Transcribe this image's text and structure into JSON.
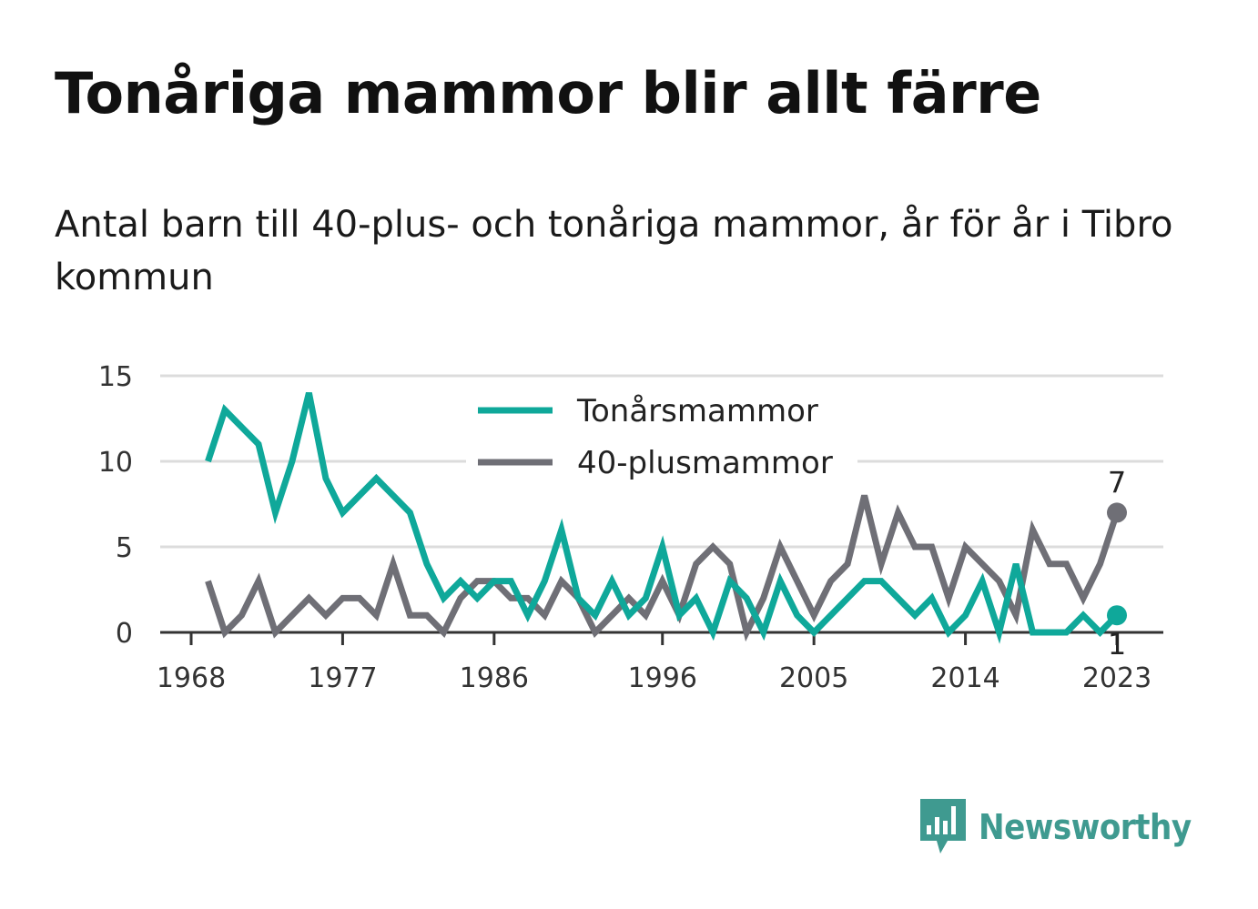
{
  "title": "Tonåriga mammor blir allt färre",
  "subtitle": "Antal barn till 40-plus- och tonåriga mammor, år för år i Tibro kommun",
  "brand": {
    "name": "Newsworthy",
    "icon": "newsworthy-bar-chart-icon"
  },
  "chart_data": {
    "type": "line",
    "title": "Tonåriga mammor blir allt färre",
    "x_ticks": [
      "1968",
      "1977",
      "1986",
      "1996",
      "2005",
      "2014",
      "2023"
    ],
    "y_ticks": [
      "0",
      "5",
      "10",
      "15"
    ],
    "ylim": [
      0,
      15
    ],
    "xlim": [
      1967,
      2026
    ],
    "grid": true,
    "legend_position": "top-center",
    "x": [
      1969,
      1970,
      1971,
      1972,
      1973,
      1974,
      1975,
      1976,
      1977,
      1978,
      1979,
      1980,
      1981,
      1982,
      1983,
      1984,
      1985,
      1986,
      1987,
      1988,
      1989,
      1990,
      1991,
      1992,
      1993,
      1994,
      1995,
      1996,
      1997,
      1998,
      1999,
      2000,
      2001,
      2002,
      2003,
      2004,
      2005,
      2006,
      2007,
      2008,
      2009,
      2010,
      2011,
      2012,
      2013,
      2014,
      2015,
      2016,
      2017,
      2018,
      2019,
      2020,
      2021,
      2022,
      2023
    ],
    "series": [
      {
        "name": "Tonårsmammor",
        "color": "#0fa89a",
        "end_label": "1",
        "values": [
          10,
          13,
          12,
          11,
          7,
          10,
          14,
          9,
          7,
          8,
          9,
          8,
          7,
          4,
          2,
          3,
          2,
          3,
          3,
          1,
          3,
          6,
          2,
          1,
          3,
          1,
          2,
          5,
          1,
          2,
          0,
          3,
          2,
          0,
          3,
          1,
          0,
          1,
          2,
          3,
          3,
          2,
          1,
          2,
          0,
          1,
          3,
          0,
          4,
          0,
          0,
          0,
          1,
          0,
          1
        ]
      },
      {
        "name": "40-plusmammor",
        "color": "#6f6f76",
        "end_label": "7",
        "values": [
          3,
          0,
          1,
          3,
          0,
          1,
          2,
          1,
          2,
          2,
          1,
          4,
          1,
          1,
          0,
          2,
          3,
          3,
          2,
          2,
          1,
          3,
          2,
          0,
          1,
          2,
          1,
          3,
          1,
          4,
          5,
          4,
          0,
          2,
          5,
          3,
          1,
          3,
          4,
          8,
          4,
          7,
          5,
          5,
          2,
          5,
          4,
          3,
          1,
          6,
          4,
          4,
          2,
          4,
          7
        ]
      }
    ]
  }
}
